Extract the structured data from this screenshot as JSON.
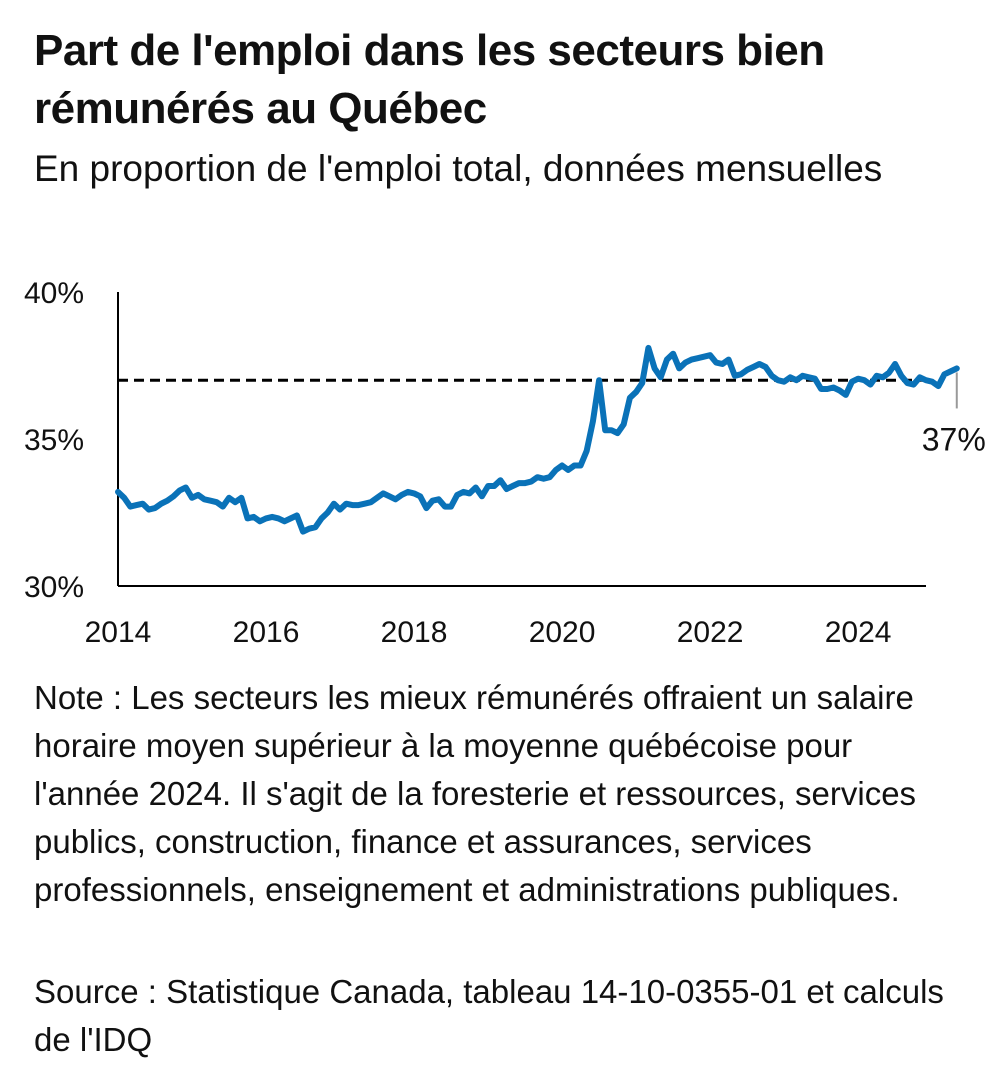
{
  "title": "Part de l'emploi dans les secteurs bien rémunérés au Québec",
  "subtitle": "En proportion de l'emploi total, données mensuelles",
  "note": "Note :  Les secteurs les mieux rémunérés offraient un salaire horaire moyen supérieur à la moyenne québécoise pour l'année 2024. Il s'agit de la foresterie et ressources, services publics, construction, finance et assurances, services professionnels, enseignement et administrations publiques.",
  "source": "Source : Statistique Canada, tableau 14-10-0355-01 et calculs de l'IDQ",
  "chart_data": {
    "type": "line",
    "xlim": [
      2014.0,
      2024.917
    ],
    "ylim": [
      30,
      40
    ],
    "x_ticks": [
      "2014",
      "2016",
      "2018",
      "2020",
      "2022",
      "2024"
    ],
    "y_ticks": [
      "30%",
      "35%",
      "40%"
    ],
    "reference_line": 37,
    "end_label": "37%",
    "line_color": "#0a72b8",
    "reference_color": "#000000",
    "grid": false,
    "series": [
      {
        "x_start": 2014.0,
        "x_step": 0.08333,
        "values": [
          33.2,
          33.0,
          32.7,
          32.75,
          32.8,
          32.6,
          32.65,
          32.8,
          32.9,
          33.05,
          33.25,
          33.35,
          33.0,
          33.1,
          32.95,
          32.9,
          32.85,
          32.7,
          33.0,
          32.85,
          33.0,
          32.3,
          32.35,
          32.2,
          32.3,
          32.35,
          32.3,
          32.2,
          32.3,
          32.4,
          31.85,
          31.95,
          32.0,
          32.3,
          32.5,
          32.8,
          32.6,
          32.8,
          32.75,
          32.75,
          32.8,
          32.85,
          33.0,
          33.15,
          33.05,
          32.95,
          33.1,
          33.2,
          33.15,
          33.05,
          32.65,
          32.9,
          32.95,
          32.7,
          32.7,
          33.1,
          33.2,
          33.15,
          33.35,
          33.05,
          33.4,
          33.4,
          33.6,
          33.3,
          33.4,
          33.5,
          33.5,
          33.55,
          33.7,
          33.65,
          33.7,
          33.95,
          34.1,
          33.95,
          34.1,
          34.1,
          34.6,
          35.6,
          37.0,
          35.3,
          35.3,
          35.2,
          35.5,
          36.4,
          36.6,
          36.9,
          38.1,
          37.4,
          37.1,
          37.7,
          37.9,
          37.4,
          37.6,
          37.7,
          37.75,
          37.8,
          37.85,
          37.6,
          37.55,
          37.7,
          37.15,
          37.2,
          37.35,
          37.45,
          37.55,
          37.45,
          37.15,
          37.0,
          36.95,
          37.1,
          37.0,
          37.15,
          37.1,
          37.05,
          36.7,
          36.7,
          36.75,
          36.65,
          36.5,
          36.95,
          37.05,
          37.0,
          36.85,
          37.15,
          37.1,
          37.25,
          37.55,
          37.15,
          36.9,
          36.85,
          37.1,
          37.0,
          36.95,
          36.8,
          37.2,
          37.3,
          37.4
        ]
      }
    ]
  }
}
